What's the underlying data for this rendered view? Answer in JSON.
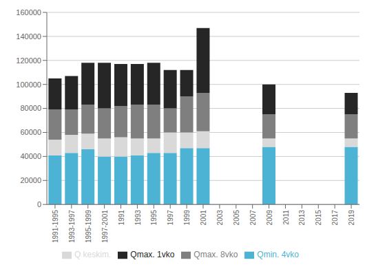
{
  "chart_data": {
    "type": "bar",
    "stacked": true,
    "categories": [
      "1991-1995",
      "1993-1997",
      "1995-1999",
      "1997-2001",
      "1991",
      "1993",
      "1995",
      "1997",
      "1999",
      "2001",
      "2003",
      "2005",
      "2007",
      "2009",
      "2011",
      "2013",
      "2015",
      "2017",
      "2019"
    ],
    "series": [
      {
        "name": "Qmin. 4vko",
        "color": "#4db3d4",
        "values": [
          41000,
          43000,
          46000,
          40000,
          40000,
          41000,
          43000,
          43000,
          47000,
          47000,
          0,
          0,
          0,
          48000,
          0,
          0,
          0,
          0,
          48000
        ]
      },
      {
        "name": "Q keskim.",
        "color": "#d9d9d9",
        "values": [
          13000,
          15000,
          13000,
          15000,
          16000,
          14000,
          12000,
          17000,
          13000,
          14000,
          0,
          0,
          0,
          7000,
          0,
          0,
          0,
          0,
          7000
        ]
      },
      {
        "name": "Qmax. 8vko",
        "color": "#7f7f7f",
        "values": [
          25000,
          21000,
          24000,
          25000,
          26000,
          28000,
          28000,
          20000,
          30000,
          32000,
          0,
          0,
          0,
          20000,
          0,
          0,
          0,
          0,
          20000
        ]
      },
      {
        "name": "Qmax. 1vko",
        "color": "#262626",
        "values": [
          26000,
          28000,
          35000,
          38000,
          35000,
          34000,
          35000,
          32000,
          22000,
          54000,
          0,
          0,
          0,
          25000,
          0,
          0,
          0,
          0,
          18000
        ]
      }
    ],
    "ylim": [
      0,
      160000
    ],
    "yticks": [
      0,
      20000,
      40000,
      60000,
      80000,
      100000,
      120000,
      140000,
      160000
    ],
    "grid": true,
    "legend": "bottom"
  }
}
